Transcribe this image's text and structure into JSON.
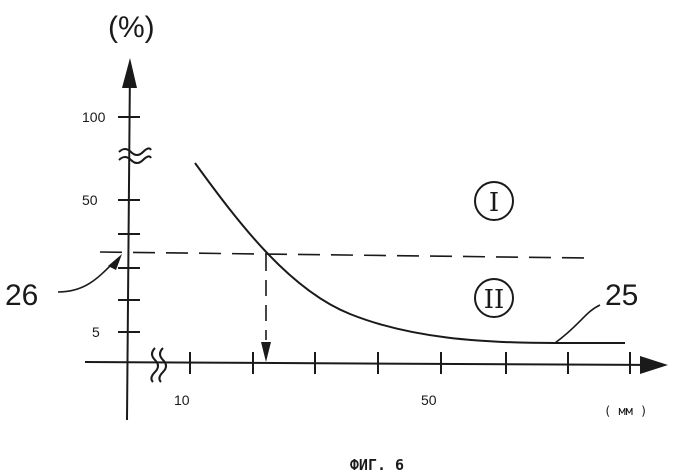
{
  "figure": {
    "y_unit": "(%)",
    "x_unit": "( мм )",
    "caption": "ФИГ. 6",
    "y_ticks": [
      "100",
      "50",
      "5"
    ],
    "x_ticks": [
      "10",
      "50"
    ],
    "region_upper": "I",
    "region_lower": "II",
    "curve_label": "25",
    "threshold_label": "26"
  }
}
